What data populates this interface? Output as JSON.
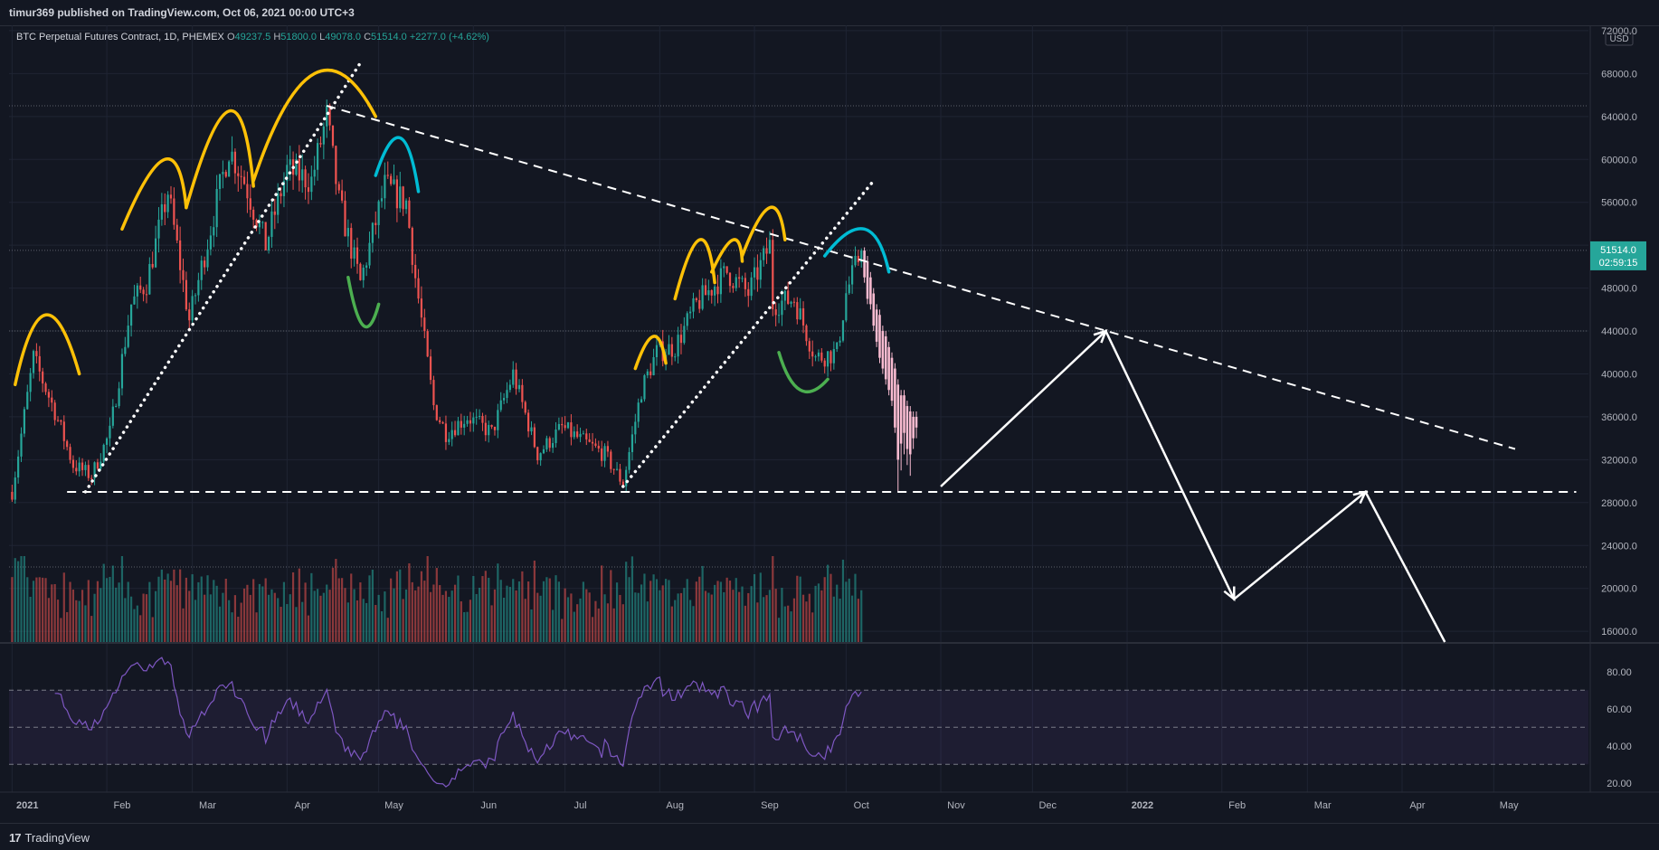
{
  "header": {
    "publisher_text": "timur369 published on TradingView.com, Oct 06, 2021 00:00 UTC+3"
  },
  "legend": {
    "symbol": "BTC Perpetual Futures Contract, 1D, PHEMEX",
    "open_label": "O",
    "open": "49237.5",
    "high_label": "H",
    "high": "51800.0",
    "low_label": "L",
    "low": "49078.0",
    "close_label": "C",
    "close": "51514.0",
    "change": "+2277.0 (+4.62%)"
  },
  "price_axis": {
    "currency": "USD",
    "ticks": [
      "72000.0",
      "68000.0",
      "64000.0",
      "60000.0",
      "56000.0",
      "52000.0",
      "48000.0",
      "44000.0",
      "40000.0",
      "36000.0",
      "32000.0",
      "28000.0",
      "24000.0",
      "20000.0",
      "16000.0"
    ],
    "last_price": "51514.0",
    "countdown": "02:59:15"
  },
  "rsi_axis": {
    "ticks": [
      "80.00",
      "60.00",
      "40.00",
      "20.00"
    ]
  },
  "time_axis": {
    "labels": [
      "2021",
      "Feb",
      "Mar",
      "Apr",
      "May",
      "Jun",
      "Jul",
      "Aug",
      "Sep",
      "Oct",
      "Nov",
      "Dec",
      "2022",
      "Feb",
      "Mar",
      "Apr",
      "May"
    ]
  },
  "footer": {
    "brand_icon": "17",
    "brand": "TradingView"
  },
  "colors": {
    "background": "#131722",
    "up": "#26a69a",
    "down": "#ef5350",
    "projection": "#f8bbd0",
    "rsi_line": "#7e57c2",
    "yellow": "#ffc107",
    "cyan": "#00bcd4",
    "green": "#4caf50",
    "white": "#ffffff"
  },
  "chart_data": {
    "type": "candlestick",
    "symbol": "BTC Perpetual Futures Contract",
    "interval": "1D",
    "exchange": "PHEMEX",
    "y_range": [
      15000,
      72500
    ],
    "rsi_range": [
      15,
      95
    ],
    "rsi_levels": [
      70,
      50,
      30
    ],
    "anchors": [
      [
        "2021-01-01",
        29000
      ],
      [
        "2021-01-08",
        41500
      ],
      [
        "2021-01-15",
        36500
      ],
      [
        "2021-01-21",
        31500
      ],
      [
        "2021-01-27",
        30500
      ],
      [
        "2021-02-02",
        34500
      ],
      [
        "2021-02-09",
        46500
      ],
      [
        "2021-02-14",
        48500
      ],
      [
        "2021-02-21",
        57000
      ],
      [
        "2021-02-28",
        45000
      ],
      [
        "2021-03-13",
        61000
      ],
      [
        "2021-03-18",
        58000
      ],
      [
        "2021-03-25",
        52000
      ],
      [
        "2021-04-01",
        59000
      ],
      [
        "2021-04-09",
        58000
      ],
      [
        "2021-04-14",
        64000
      ],
      [
        "2021-04-18",
        56000
      ],
      [
        "2021-04-25",
        48500
      ],
      [
        "2021-05-03",
        57500
      ],
      [
        "2021-05-10",
        56000
      ],
      [
        "2021-05-13",
        49000
      ],
      [
        "2021-05-19",
        37000
      ],
      [
        "2021-05-23",
        34500
      ],
      [
        "2021-05-30",
        36000
      ],
      [
        "2021-06-07",
        34500
      ],
      [
        "2021-06-14",
        40000
      ],
      [
        "2021-06-22",
        32500
      ],
      [
        "2021-06-30",
        35000
      ],
      [
        "2021-07-08",
        33500
      ],
      [
        "2021-07-14",
        32500
      ],
      [
        "2021-07-20",
        29800
      ],
      [
        "2021-07-26",
        38500
      ],
      [
        "2021-07-31",
        42000
      ],
      [
        "2021-08-06",
        42500
      ],
      [
        "2021-08-13",
        46500
      ],
      [
        "2021-08-23",
        49500
      ],
      [
        "2021-08-30",
        47500
      ],
      [
        "2021-09-06",
        52000
      ],
      [
        "2021-09-07",
        46500
      ],
      [
        "2021-09-14",
        47000
      ],
      [
        "2021-09-21",
        41500
      ],
      [
        "2021-09-28",
        42000
      ],
      [
        "2021-10-01",
        47500
      ],
      [
        "2021-10-06",
        51514
      ]
    ],
    "projection_candles": [
      {
        "x": "2021-10-07",
        "open": 51500,
        "close": 49000,
        "high": 51800,
        "low": 48500
      },
      {
        "x": "2021-10-08",
        "open": 50500,
        "close": 47000,
        "high": 51000,
        "low": 46500
      },
      {
        "x": "2021-10-09",
        "open": 49000,
        "close": 46500,
        "high": 49500,
        "low": 46000
      },
      {
        "x": "2021-10-10",
        "open": 47500,
        "close": 44500,
        "high": 48000,
        "low": 44000
      },
      {
        "x": "2021-10-11",
        "open": 46000,
        "close": 43000,
        "high": 46500,
        "low": 42500
      },
      {
        "x": "2021-10-12",
        "open": 45500,
        "close": 41500,
        "high": 46000,
        "low": 41000
      },
      {
        "x": "2021-10-13",
        "open": 44000,
        "close": 40500,
        "high": 44500,
        "low": 40000
      },
      {
        "x": "2021-10-14",
        "open": 43500,
        "close": 39500,
        "high": 44000,
        "low": 39000
      },
      {
        "x": "2021-10-15",
        "open": 42500,
        "close": 38500,
        "high": 43000,
        "low": 38000
      },
      {
        "x": "2021-10-16",
        "open": 41500,
        "close": 37500,
        "high": 42000,
        "low": 37000
      },
      {
        "x": "2021-10-17",
        "open": 40500,
        "close": 35000,
        "high": 41000,
        "low": 34500
      },
      {
        "x": "2021-10-18",
        "open": 39000,
        "close": 32000,
        "high": 39500,
        "low": 29000
      },
      {
        "x": "2021-10-19",
        "open": 38000,
        "close": 33500,
        "high": 38500,
        "low": 31000
      },
      {
        "x": "2021-10-20",
        "open": 38000,
        "close": 34500,
        "high": 38500,
        "low": 32500
      },
      {
        "x": "2021-10-21",
        "open": 37000,
        "close": 33000,
        "high": 37500,
        "low": 31500
      },
      {
        "x": "2021-10-22",
        "open": 36500,
        "close": 32500,
        "high": 37000,
        "low": 30500
      },
      {
        "x": "2021-10-23",
        "open": 36000,
        "close": 34000,
        "high": 36500,
        "low": 33000
      },
      {
        "x": "2021-10-24",
        "open": 36000,
        "close": 35000,
        "high": 36500,
        "low": 34000
      }
    ],
    "horizontal_levels": [
      65000,
      51514,
      44000,
      22000
    ],
    "drawings": {
      "support_dashed": [
        [
          "2021-01-19",
          29000
        ],
        [
          "2022-05-28",
          29000
        ]
      ],
      "descending_resistance_dashed": [
        [
          "2021-04-14",
          65000
        ],
        [
          "2022-05-08",
          33000
        ]
      ],
      "uptrend_dotted_1": [
        [
          "2021-01-25",
          29000
        ],
        [
          "2021-04-25",
          69000
        ]
      ],
      "uptrend_dotted_2": [
        [
          "2021-07-20",
          29500
        ],
        [
          "2021-10-10",
          58000
        ]
      ],
      "projection_path": [
        [
          "2021-11-01",
          29500
        ],
        [
          "2021-12-25",
          44000
        ],
        [
          "2022-02-05",
          19000
        ],
        [
          "2022-03-20",
          29000
        ],
        [
          "2022-04-15",
          15000
        ]
      ],
      "yellow_arcs": [
        [
          [
            "2021-01-02",
            39000
          ],
          [
            "2021-01-12",
            45500
          ],
          [
            "2021-01-23",
            40000
          ]
        ],
        [
          [
            "2021-02-06",
            53500
          ],
          [
            "2021-02-20",
            60000
          ],
          [
            "2021-02-27",
            55500
          ]
        ],
        [
          [
            "2021-02-27",
            55500
          ],
          [
            "2021-03-13",
            64500
          ],
          [
            "2021-03-21",
            57500
          ]
        ],
        [
          [
            "2021-03-21",
            58000
          ],
          [
            "2021-04-10",
            68000
          ],
          [
            "2021-04-30",
            64000
          ]
        ],
        [
          [
            "2021-07-24",
            40500
          ],
          [
            "2021-07-30",
            43500
          ],
          [
            "2021-08-03",
            41000
          ]
        ],
        [
          [
            "2021-08-06",
            47000
          ],
          [
            "2021-08-14",
            52500
          ],
          [
            "2021-08-19",
            48500
          ]
        ],
        [
          [
            "2021-08-18",
            49500
          ],
          [
            "2021-08-25",
            52500
          ],
          [
            "2021-08-28",
            50500
          ]
        ],
        [
          [
            "2021-08-28",
            51000
          ],
          [
            "2021-09-06",
            55500
          ],
          [
            "2021-09-11",
            52500
          ]
        ]
      ],
      "cyan_arcs": [
        [
          [
            "2021-04-30",
            58500
          ],
          [
            "2021-05-08",
            62000
          ],
          [
            "2021-05-14",
            57000
          ]
        ],
        [
          [
            "2021-09-24",
            51000
          ],
          [
            "2021-10-07",
            53500
          ],
          [
            "2021-10-15",
            49500
          ]
        ]
      ],
      "green_arcs": [
        [
          [
            "2021-04-21",
            49000
          ],
          [
            "2021-04-26",
            44500
          ],
          [
            "2021-05-01",
            46500
          ]
        ],
        [
          [
            "2021-09-09",
            42000
          ],
          [
            "2021-09-16",
            38500
          ],
          [
            "2021-09-25",
            39500
          ]
        ]
      ]
    }
  }
}
